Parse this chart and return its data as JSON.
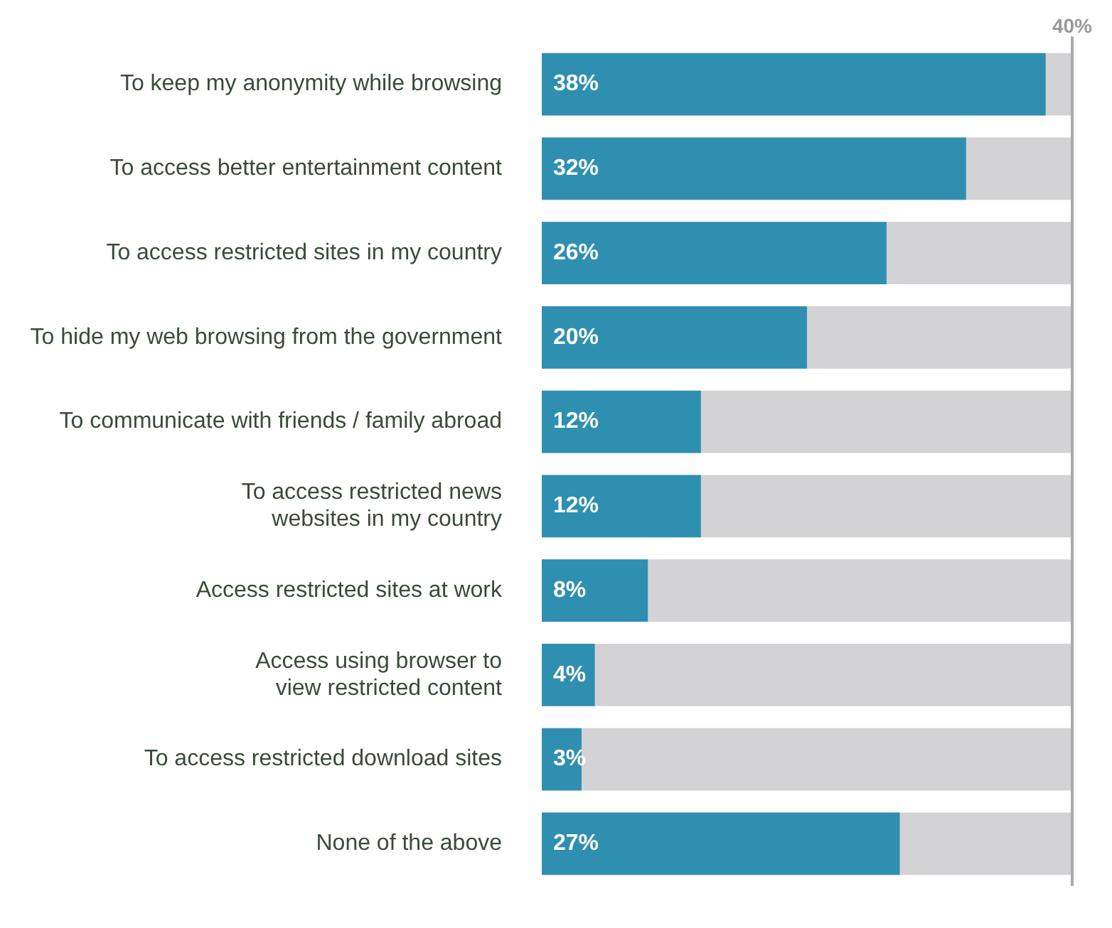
{
  "chart_data": {
    "type": "bar",
    "orientation": "horizontal",
    "categories": [
      "To keep my anonymity while browsing",
      "To access better entertainment content",
      "To access restricted sites in my country",
      "To hide my web browsing from the government",
      "To communicate with friends / family abroad",
      "To access restricted news websites in my country",
      "Access restricted sites at work",
      "Access using browser to view restricted content",
      "To access restricted download sites",
      "None of the above"
    ],
    "values": [
      38,
      32,
      26,
      20,
      12,
      12,
      8,
      4,
      3,
      27
    ],
    "value_labels": [
      "38%",
      "32%",
      "26%",
      "20%",
      "12%",
      "12%",
      "8%",
      "4%",
      "3%",
      "27%"
    ],
    "color": "#2f8fb0",
    "xlim": [
      0,
      40
    ],
    "xticks": [
      {
        "value": 40,
        "label": "40%"
      }
    ],
    "legend": false
  }
}
